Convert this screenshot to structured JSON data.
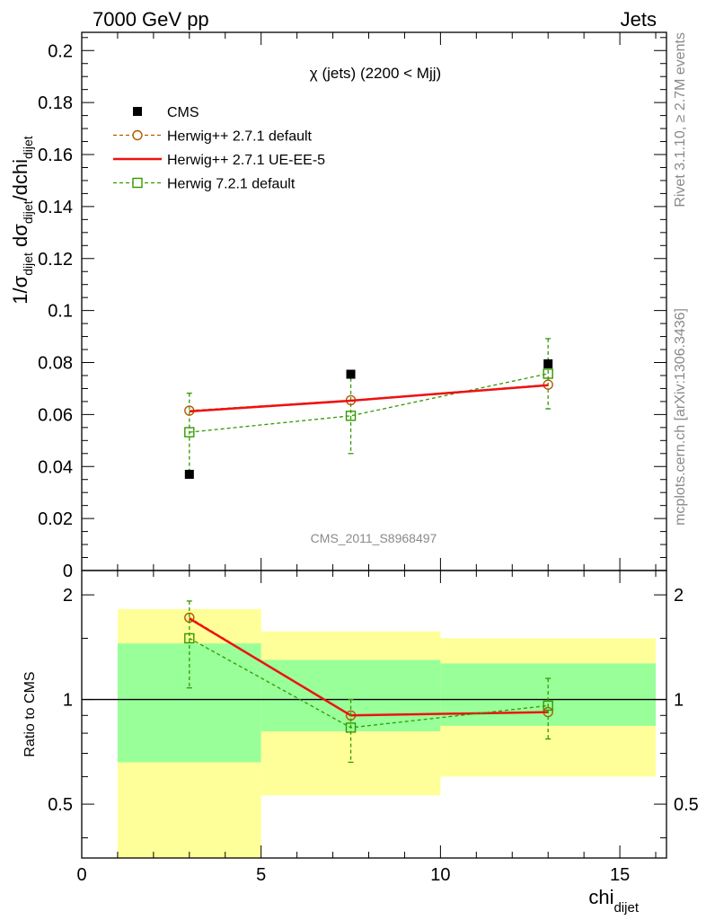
{
  "header": {
    "left": "7000 GeV pp",
    "right": "Jets"
  },
  "side_labels": {
    "rivet": "Rivet 3.1.10, ≥ 2.7M events",
    "mcplots": "mcplots.cern.ch [arXiv:1306.3436]"
  },
  "chart_data": {
    "type": "line",
    "title": "χ (jets) (2200 < Mjj)",
    "watermark": "CMS_2011_S8968497",
    "xlabel_main": "chi",
    "xlabel_sub": "dijet",
    "ylabel_main": "1/σ",
    "ylabel": "1/σ_dijet dσ_dijet/dchi_dijet",
    "xlim": [
      0,
      16.3
    ],
    "ylim": [
      0,
      0.207
    ],
    "x_ticks": [
      "0",
      "5",
      "10",
      "15"
    ],
    "y_ticks": [
      "0",
      "0.02",
      "0.04",
      "0.06",
      "0.08",
      "0.1",
      "0.12",
      "0.14",
      "0.16",
      "0.18",
      "0.2"
    ],
    "legend_position": "top-left",
    "data": {
      "name": "CMS",
      "color": "#000000",
      "x": [
        3,
        7.5,
        13
      ],
      "y": [
        0.037,
        0.0755,
        0.0795
      ]
    },
    "series": [
      {
        "name": "Herwig++ 2.7.1 default",
        "color": "#b35900",
        "style": "dashed",
        "marker": "circle",
        "x": [
          3,
          7.5,
          13
        ],
        "y": [
          0.0615,
          0.0655,
          0.0715
        ],
        "yerr": [
          0,
          0,
          0
        ]
      },
      {
        "name": "Herwig++ 2.7.1 UE-EE-5",
        "color": "#ee1111",
        "style": "solid",
        "marker": "none",
        "x": [
          3,
          7.5,
          13
        ],
        "y": [
          0.0612,
          0.0653,
          0.0713
        ],
        "yerr": [
          0,
          0,
          0
        ]
      },
      {
        "name": "Herwig 7.2.1 default",
        "color": "#339900",
        "style": "dashed",
        "marker": "square",
        "x": [
          3,
          7.5,
          13
        ],
        "y": [
          0.0532,
          0.0595,
          0.0757
        ],
        "yerr": [
          0.015,
          0.0145,
          0.0135
        ]
      }
    ],
    "ratio": {
      "ylabel": "Ratio to CMS",
      "ylim": [
        0.35,
        2.35
      ],
      "y_ticks": [
        "0.5",
        "1",
        "2"
      ],
      "y_tick_values": [
        0.5,
        1,
        2
      ],
      "bands": [
        {
          "x0": 1,
          "x1": 5,
          "yellow": [
            0.3,
            1.82
          ],
          "green": [
            0.66,
            1.45
          ]
        },
        {
          "x0": 5,
          "x1": 10,
          "yellow": [
            0.53,
            1.57
          ],
          "green": [
            0.81,
            1.3
          ]
        },
        {
          "x0": 10,
          "x1": 16,
          "yellow": [
            0.6,
            1.5
          ],
          "green": [
            0.84,
            1.27
          ]
        }
      ],
      "series": [
        {
          "name": "Herwig++ 2.7.1 default",
          "color": "#b35900",
          "style": "dashed",
          "marker": "circle",
          "x": [
            3,
            7.5,
            13
          ],
          "y": [
            1.72,
            0.9,
            0.92
          ],
          "yerr": [
            0,
            0,
            0
          ]
        },
        {
          "name": "Herwig++ 2.7.1 UE-EE-5",
          "color": "#ee1111",
          "style": "solid",
          "marker": "none",
          "x": [
            3,
            7.5,
            13
          ],
          "y": [
            1.71,
            0.9,
            0.92
          ],
          "yerr": [
            0,
            0,
            0
          ]
        },
        {
          "name": "Herwig 7.2.1 default",
          "color": "#339900",
          "style": "dashed",
          "marker": "square",
          "x": [
            3,
            7.5,
            13
          ],
          "y": [
            1.5,
            0.83,
            0.96
          ],
          "yerr": [
            0.42,
            0.17,
            0.19
          ]
        }
      ]
    }
  }
}
